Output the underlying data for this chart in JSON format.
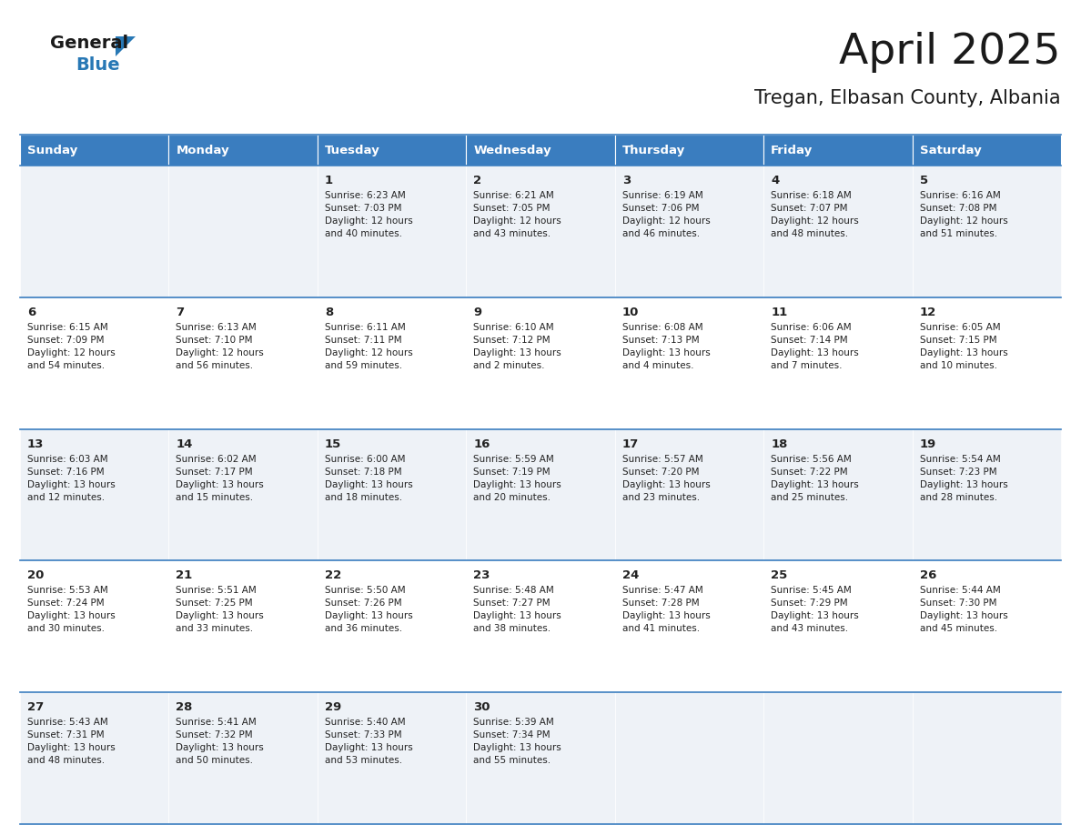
{
  "title": "April 2025",
  "subtitle": "Tregan, Elbasan County, Albania",
  "days_of_week": [
    "Sunday",
    "Monday",
    "Tuesday",
    "Wednesday",
    "Thursday",
    "Friday",
    "Saturday"
  ],
  "header_bg": "#3a7dbf",
  "header_text": "#ffffff",
  "row_bg_even": "#eef2f7",
  "row_bg_odd": "#ffffff",
  "separator_color": "#3a7dbf",
  "text_color": "#222222",
  "title_color": "#1a1a1a",
  "weeks": [
    [
      {
        "day": "",
        "info": ""
      },
      {
        "day": "",
        "info": ""
      },
      {
        "day": "1",
        "info": "Sunrise: 6:23 AM\nSunset: 7:03 PM\nDaylight: 12 hours\nand 40 minutes."
      },
      {
        "day": "2",
        "info": "Sunrise: 6:21 AM\nSunset: 7:05 PM\nDaylight: 12 hours\nand 43 minutes."
      },
      {
        "day": "3",
        "info": "Sunrise: 6:19 AM\nSunset: 7:06 PM\nDaylight: 12 hours\nand 46 minutes."
      },
      {
        "day": "4",
        "info": "Sunrise: 6:18 AM\nSunset: 7:07 PM\nDaylight: 12 hours\nand 48 minutes."
      },
      {
        "day": "5",
        "info": "Sunrise: 6:16 AM\nSunset: 7:08 PM\nDaylight: 12 hours\nand 51 minutes."
      }
    ],
    [
      {
        "day": "6",
        "info": "Sunrise: 6:15 AM\nSunset: 7:09 PM\nDaylight: 12 hours\nand 54 minutes."
      },
      {
        "day": "7",
        "info": "Sunrise: 6:13 AM\nSunset: 7:10 PM\nDaylight: 12 hours\nand 56 minutes."
      },
      {
        "day": "8",
        "info": "Sunrise: 6:11 AM\nSunset: 7:11 PM\nDaylight: 12 hours\nand 59 minutes."
      },
      {
        "day": "9",
        "info": "Sunrise: 6:10 AM\nSunset: 7:12 PM\nDaylight: 13 hours\nand 2 minutes."
      },
      {
        "day": "10",
        "info": "Sunrise: 6:08 AM\nSunset: 7:13 PM\nDaylight: 13 hours\nand 4 minutes."
      },
      {
        "day": "11",
        "info": "Sunrise: 6:06 AM\nSunset: 7:14 PM\nDaylight: 13 hours\nand 7 minutes."
      },
      {
        "day": "12",
        "info": "Sunrise: 6:05 AM\nSunset: 7:15 PM\nDaylight: 13 hours\nand 10 minutes."
      }
    ],
    [
      {
        "day": "13",
        "info": "Sunrise: 6:03 AM\nSunset: 7:16 PM\nDaylight: 13 hours\nand 12 minutes."
      },
      {
        "day": "14",
        "info": "Sunrise: 6:02 AM\nSunset: 7:17 PM\nDaylight: 13 hours\nand 15 minutes."
      },
      {
        "day": "15",
        "info": "Sunrise: 6:00 AM\nSunset: 7:18 PM\nDaylight: 13 hours\nand 18 minutes."
      },
      {
        "day": "16",
        "info": "Sunrise: 5:59 AM\nSunset: 7:19 PM\nDaylight: 13 hours\nand 20 minutes."
      },
      {
        "day": "17",
        "info": "Sunrise: 5:57 AM\nSunset: 7:20 PM\nDaylight: 13 hours\nand 23 minutes."
      },
      {
        "day": "18",
        "info": "Sunrise: 5:56 AM\nSunset: 7:22 PM\nDaylight: 13 hours\nand 25 minutes."
      },
      {
        "day": "19",
        "info": "Sunrise: 5:54 AM\nSunset: 7:23 PM\nDaylight: 13 hours\nand 28 minutes."
      }
    ],
    [
      {
        "day": "20",
        "info": "Sunrise: 5:53 AM\nSunset: 7:24 PM\nDaylight: 13 hours\nand 30 minutes."
      },
      {
        "day": "21",
        "info": "Sunrise: 5:51 AM\nSunset: 7:25 PM\nDaylight: 13 hours\nand 33 minutes."
      },
      {
        "day": "22",
        "info": "Sunrise: 5:50 AM\nSunset: 7:26 PM\nDaylight: 13 hours\nand 36 minutes."
      },
      {
        "day": "23",
        "info": "Sunrise: 5:48 AM\nSunset: 7:27 PM\nDaylight: 13 hours\nand 38 minutes."
      },
      {
        "day": "24",
        "info": "Sunrise: 5:47 AM\nSunset: 7:28 PM\nDaylight: 13 hours\nand 41 minutes."
      },
      {
        "day": "25",
        "info": "Sunrise: 5:45 AM\nSunset: 7:29 PM\nDaylight: 13 hours\nand 43 minutes."
      },
      {
        "day": "26",
        "info": "Sunrise: 5:44 AM\nSunset: 7:30 PM\nDaylight: 13 hours\nand 45 minutes."
      }
    ],
    [
      {
        "day": "27",
        "info": "Sunrise: 5:43 AM\nSunset: 7:31 PM\nDaylight: 13 hours\nand 48 minutes."
      },
      {
        "day": "28",
        "info": "Sunrise: 5:41 AM\nSunset: 7:32 PM\nDaylight: 13 hours\nand 50 minutes."
      },
      {
        "day": "29",
        "info": "Sunrise: 5:40 AM\nSunset: 7:33 PM\nDaylight: 13 hours\nand 53 minutes."
      },
      {
        "day": "30",
        "info": "Sunrise: 5:39 AM\nSunset: 7:34 PM\nDaylight: 13 hours\nand 55 minutes."
      },
      {
        "day": "",
        "info": ""
      },
      {
        "day": "",
        "info": ""
      },
      {
        "day": "",
        "info": ""
      }
    ]
  ]
}
